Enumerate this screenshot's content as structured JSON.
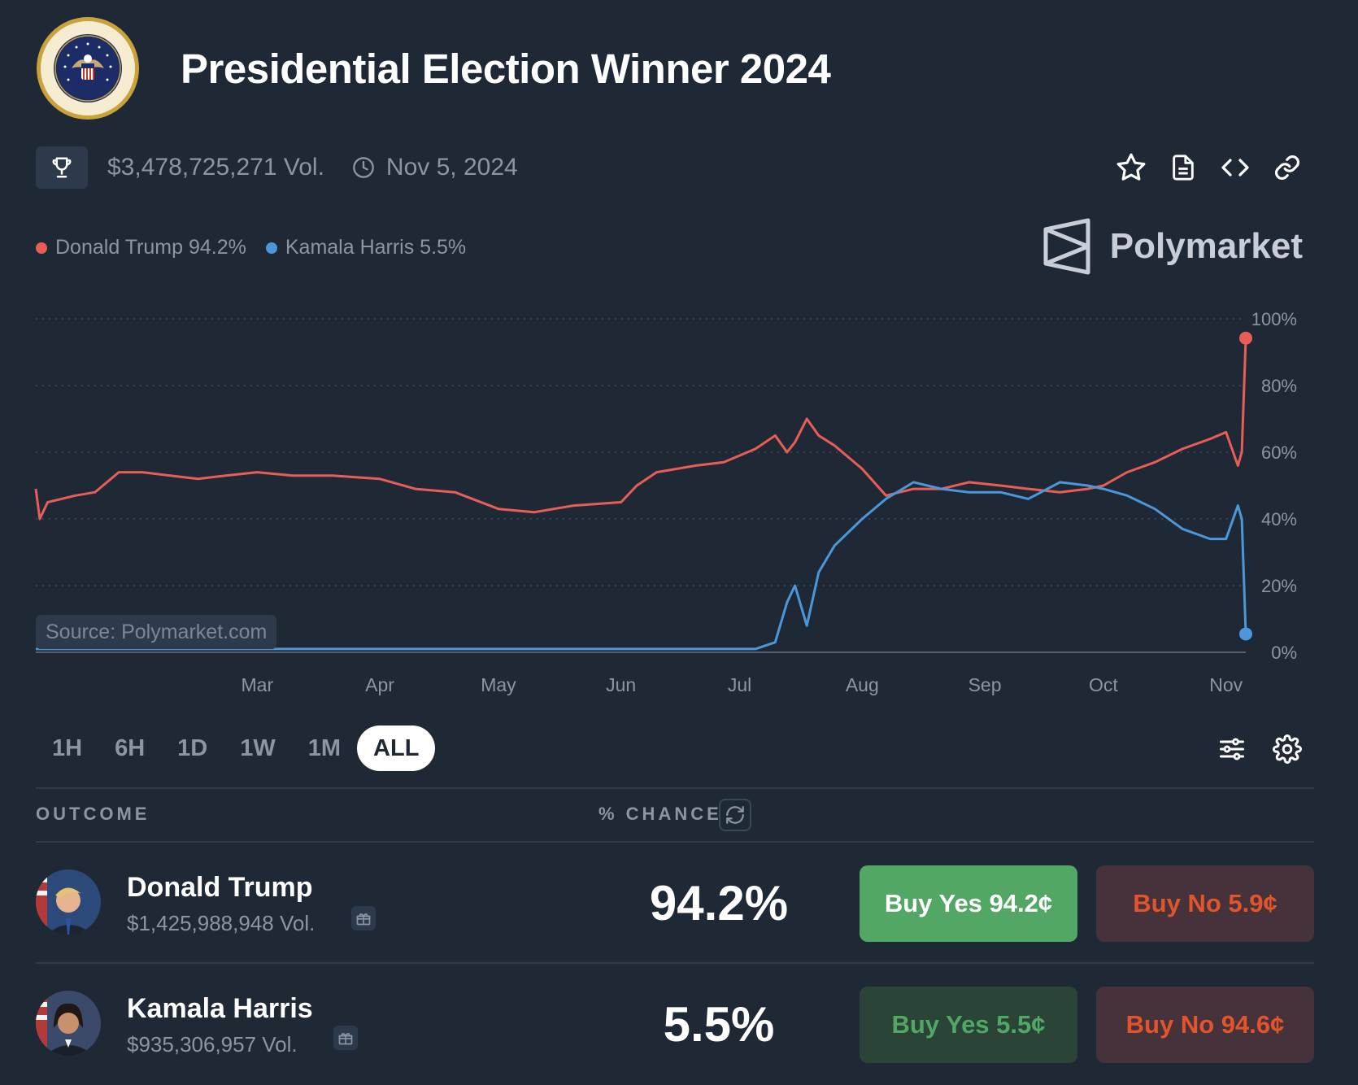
{
  "header": {
    "title": "Presidential Election Winner 2024"
  },
  "meta": {
    "volume": "$3,478,725,271 Vol.",
    "date": "Nov 5, 2024",
    "icons": [
      "trophy-icon",
      "clock-icon"
    ]
  },
  "actions": {
    "icons": [
      "star-icon",
      "document-icon",
      "code-icon",
      "link-icon"
    ]
  },
  "legend": [
    {
      "label": "Donald Trump 94.2%",
      "color": "#e85d55"
    },
    {
      "label": "Kamala Harris 5.5%",
      "color": "#4b97d9"
    }
  ],
  "brand": {
    "name": "Polymarket"
  },
  "source": "Source: Polymarket.com",
  "chart_data": {
    "type": "line",
    "x_ticks": [
      "Mar",
      "Apr",
      "May",
      "Jun",
      "Jul",
      "Aug",
      "Sep",
      "Oct",
      "Nov"
    ],
    "y_ticks": [
      "100%",
      "80%",
      "60%",
      "40%",
      "20%",
      "0%"
    ],
    "ylim": [
      0,
      100
    ],
    "grid": true,
    "x": [
      "Jan 5",
      "Jan 6",
      "Jan 8",
      "Jan 15",
      "Jan 20",
      "Jan 26",
      "Feb 1",
      "Feb 8",
      "Feb 15",
      "Feb 22",
      "Mar 1",
      "Mar 10",
      "Mar 20",
      "Apr 1",
      "Apr 10",
      "Apr 20",
      "May 1",
      "May 10",
      "May 20",
      "Jun 1",
      "Jun 5",
      "Jun 10",
      "Jun 20",
      "Jun 27",
      "Jul 5",
      "Jul 10",
      "Jul 13",
      "Jul 15",
      "Jul 18",
      "Jul 21",
      "Jul 25",
      "Aug 1",
      "Aug 7",
      "Aug 14",
      "Aug 21",
      "Aug 28",
      "Sep 5",
      "Sep 12",
      "Sep 20",
      "Sep 27",
      "Oct 1",
      "Oct 7",
      "Oct 14",
      "Oct 21",
      "Oct 28",
      "Nov 1",
      "Nov 4",
      "Nov 5",
      "Nov 6"
    ],
    "series": [
      {
        "name": "Donald Trump",
        "color": "#e85d55",
        "values": [
          49,
          40,
          45,
          47,
          48,
          54,
          54,
          53,
          52,
          53,
          54,
          53,
          53,
          52,
          49,
          48,
          43,
          42,
          44,
          45,
          50,
          54,
          56,
          57,
          61,
          65,
          60,
          63,
          70,
          65,
          62,
          55,
          47,
          49,
          49,
          51,
          50,
          49,
          48,
          49,
          50,
          54,
          57,
          61,
          64,
          66,
          56,
          60,
          94.2
        ]
      },
      {
        "name": "Kamala Harris",
        "color": "#4b97d9",
        "values": [
          1,
          1,
          1,
          1,
          1,
          1,
          1,
          1,
          1,
          1,
          1,
          1,
          1,
          1,
          1,
          1,
          1,
          1,
          1,
          1,
          1,
          1,
          1,
          1,
          1,
          3,
          15,
          20,
          8,
          24,
          32,
          40,
          46,
          51,
          49,
          48,
          48,
          46,
          51,
          50,
          49,
          47,
          43,
          37,
          34,
          34,
          44,
          40,
          5.5
        ]
      }
    ]
  },
  "ranges": [
    "1H",
    "6H",
    "1D",
    "1W",
    "1M",
    "ALL"
  ],
  "active_range": "ALL",
  "tools": {
    "icons": [
      "sliders-icon",
      "gear-icon"
    ]
  },
  "table": {
    "col_outcome": "OUTCOME",
    "col_chance": "% CHANCE",
    "rows": [
      {
        "name": "Donald Trump",
        "vol": "$1,425,988,948 Vol.",
        "chance": "94.2%",
        "yes": "Buy Yes 94.2¢",
        "no": "Buy No 5.9¢"
      },
      {
        "name": "Kamala Harris",
        "vol": "$935,306,957 Vol.",
        "chance": "5.5%",
        "yes": "Buy Yes 5.5¢",
        "no": "Buy No 94.6¢"
      }
    ]
  }
}
